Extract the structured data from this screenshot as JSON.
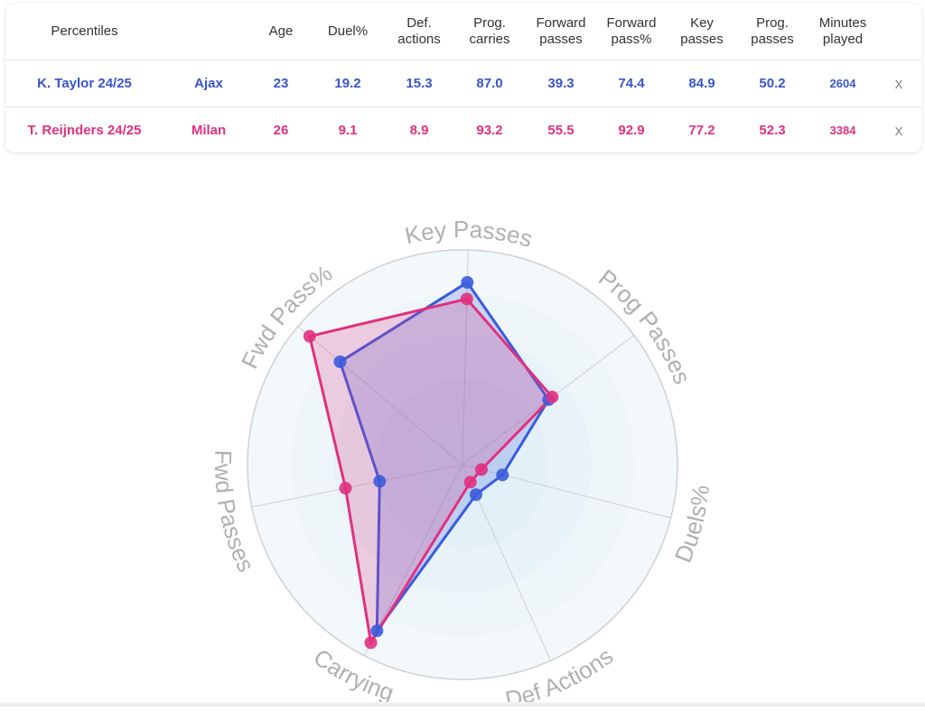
{
  "table": {
    "headers": {
      "player": "Percentiles",
      "team": "",
      "age": "Age",
      "duel": "Duel%",
      "def1": "Def.",
      "def2": "actions",
      "carry1": "Prog.",
      "carry2": "carries",
      "fwd1": "Forward",
      "fwd2": "passes",
      "fwdpct1": "Forward",
      "fwdpct2": "pass%",
      "key1": "Key",
      "key2": "passes",
      "prog1": "Prog.",
      "prog2": "passes",
      "min1": "Minutes",
      "min2": "played"
    },
    "rows": [
      {
        "player": "K. Taylor 24/25",
        "team": "Ajax",
        "age": "23",
        "duel": "19.2",
        "def": "15.3",
        "carry": "87.0",
        "fwd": "39.3",
        "fwdpct": "74.4",
        "key": "84.9",
        "prog": "50.2",
        "minutes": "2604",
        "remove": "x"
      },
      {
        "player": "T. Reijnders 24/25",
        "team": "Milan",
        "age": "26",
        "duel": "9.1",
        "def": "8.9",
        "carry": "93.2",
        "fwd": "55.5",
        "fwdpct": "92.9",
        "key": "77.2",
        "prog": "52.3",
        "minutes": "3384",
        "remove": "x"
      }
    ]
  },
  "colors": {
    "series_a": "#3b5bdb",
    "series_b": "#e0317f",
    "grid": "#d0d0d0",
    "axis_label": "#b0b0b0"
  },
  "chart_data": {
    "type": "radar",
    "axes": [
      "Key Passes",
      "Prog Passes",
      "Duels%",
      "Def Actions",
      "Carrying",
      "Fwd Passes",
      "Fwd Pass%"
    ],
    "range": [
      0,
      100
    ],
    "series": [
      {
        "name": "K. Taylor 24/25",
        "values": [
          84.9,
          50.2,
          19.2,
          15.3,
          87.0,
          39.3,
          74.4
        ]
      },
      {
        "name": "T. Reijnders 24/25",
        "values": [
          77.2,
          52.3,
          9.1,
          8.9,
          93.2,
          55.5,
          92.9
        ]
      }
    ],
    "grid": true
  }
}
